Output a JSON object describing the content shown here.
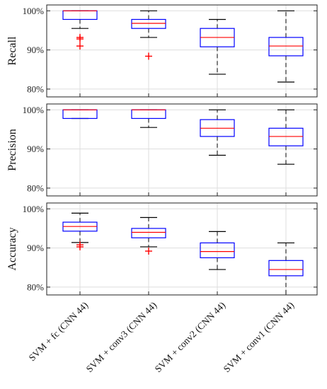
{
  "chart_data": [
    {
      "type": "box",
      "ylabel": "Recall",
      "ylim": [
        78,
        101.5
      ],
      "yticks": [
        80,
        90,
        100
      ],
      "ytick_labels": [
        "80%",
        "90%",
        "100%"
      ],
      "grid": true,
      "categories": [
        "SVM + fc (CNN 44)",
        "SVM + conv3 (CNN 44)",
        "SVM + conv2 (CNN 44)",
        "SVM + conv1 (CNN 44)"
      ],
      "boxes": [
        {
          "whisker_low": 95.5,
          "q1": 97.8,
          "median": 100,
          "q3": 100,
          "whisker_high": 100,
          "outliers": [
            93.2,
            92.8,
            91.0
          ]
        },
        {
          "whisker_low": 93.2,
          "q1": 95.5,
          "median": 96.8,
          "q3": 97.8,
          "whisker_high": 100,
          "outliers": [
            88.4
          ]
        },
        {
          "whisker_low": 83.8,
          "q1": 90.8,
          "median": 93.2,
          "q3": 95.5,
          "whisker_high": 97.8,
          "outliers": []
        },
        {
          "whisker_low": 81.8,
          "q1": 88.5,
          "median": 91.0,
          "q3": 93.2,
          "whisker_high": 100,
          "outliers": []
        }
      ]
    },
    {
      "type": "box",
      "ylabel": "Precision",
      "ylim": [
        78,
        101.5
      ],
      "yticks": [
        80,
        90,
        100
      ],
      "ytick_labels": [
        "80%",
        "90%",
        "100%"
      ],
      "grid": true,
      "categories": [
        "SVM + fc (CNN 44)",
        "SVM + conv3 (CNN 44)",
        "SVM + conv2 (CNN 44)",
        "SVM + conv1 (CNN 44)"
      ],
      "boxes": [
        {
          "whisker_low": 97.8,
          "q1": 97.8,
          "median": 100,
          "q3": 100,
          "whisker_high": 100,
          "outliers": []
        },
        {
          "whisker_low": 95.5,
          "q1": 97.8,
          "median": 100,
          "q3": 100,
          "whisker_high": 100,
          "outliers": []
        },
        {
          "whisker_low": 88.4,
          "q1": 93.2,
          "median": 95.3,
          "q3": 97.5,
          "whisker_high": 100,
          "outliers": []
        },
        {
          "whisker_low": 86.1,
          "q1": 90.8,
          "median": 93.2,
          "q3": 95.3,
          "whisker_high": 100,
          "outliers": []
        }
      ]
    },
    {
      "type": "box",
      "ylabel": "Accuracy",
      "ylim": [
        78,
        101.5
      ],
      "yticks": [
        80,
        90,
        100
      ],
      "ytick_labels": [
        "80%",
        "90%",
        "100%"
      ],
      "grid": true,
      "categories": [
        "SVM + fc (CNN 44)",
        "SVM + conv3 (CNN 44)",
        "SVM + conv2 (CNN 44)",
        "SVM + conv1 (CNN 44)"
      ],
      "boxes": [
        {
          "whisker_low": 91.4,
          "q1": 94.3,
          "median": 95.5,
          "q3": 96.6,
          "whisker_high": 98.9,
          "outliers": [
            90.8,
            90.3
          ]
        },
        {
          "whisker_low": 90.3,
          "q1": 92.6,
          "median": 94.0,
          "q3": 95.0,
          "whisker_high": 97.8,
          "outliers": [
            89.2
          ]
        },
        {
          "whisker_low": 84.5,
          "q1": 87.5,
          "median": 89.1,
          "q3": 91.3,
          "whisker_high": 94.2,
          "outliers": []
        },
        {
          "whisker_low": 78.0,
          "q1": 82.9,
          "median": 84.5,
          "q3": 86.8,
          "whisker_high": 91.3,
          "outliers": []
        }
      ]
    }
  ],
  "colors": {
    "box": "#0000ff",
    "median": "#ff0000",
    "whisker": "#000000",
    "outlier": "#ff0000",
    "grid": "#dddddd"
  }
}
